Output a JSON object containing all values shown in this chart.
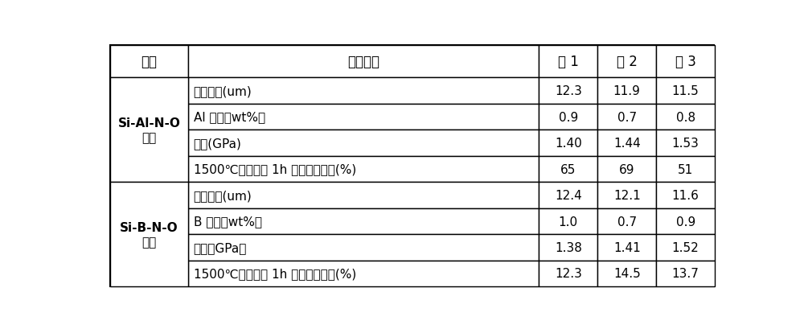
{
  "col_headers": [
    "样品",
    "性能指标",
    "例 1",
    "例 2",
    "例 3"
  ],
  "group1_label_line1": "Si-Al-N-O",
  "group1_label_line2": "纤维",
  "group2_label_line1": "Si-B-N-O",
  "group2_label_line2": "纤维",
  "group1_rows": [
    [
      "纤维直径(um)",
      "12.3",
      "11.9",
      "11.5"
    ],
    [
      "Al 含量（wt%）",
      "0.9",
      "0.7",
      "0.8"
    ],
    [
      "强度(GPa)",
      "1.40",
      "1.44",
      "1.53"
    ],
    [
      "1500℃空气处理 1h 后强度保留率(%)",
      "65",
      "69",
      "51"
    ]
  ],
  "group2_rows": [
    [
      "纤维直径(um)",
      "12.4",
      "12.1",
      "11.6"
    ],
    [
      "B 含量（wt%）",
      "1.0",
      "0.7",
      "0.9"
    ],
    [
      "强度（GPa）",
      "1.38",
      "1.41",
      "1.52"
    ],
    [
      "1500℃空气处理 1h 后强度保留率(%)",
      "12.3",
      "14.5",
      "13.7"
    ]
  ],
  "bg_color": "#ffffff",
  "line_color": "#000000",
  "text_color": "#000000",
  "font_size": 11,
  "header_font_size": 12
}
